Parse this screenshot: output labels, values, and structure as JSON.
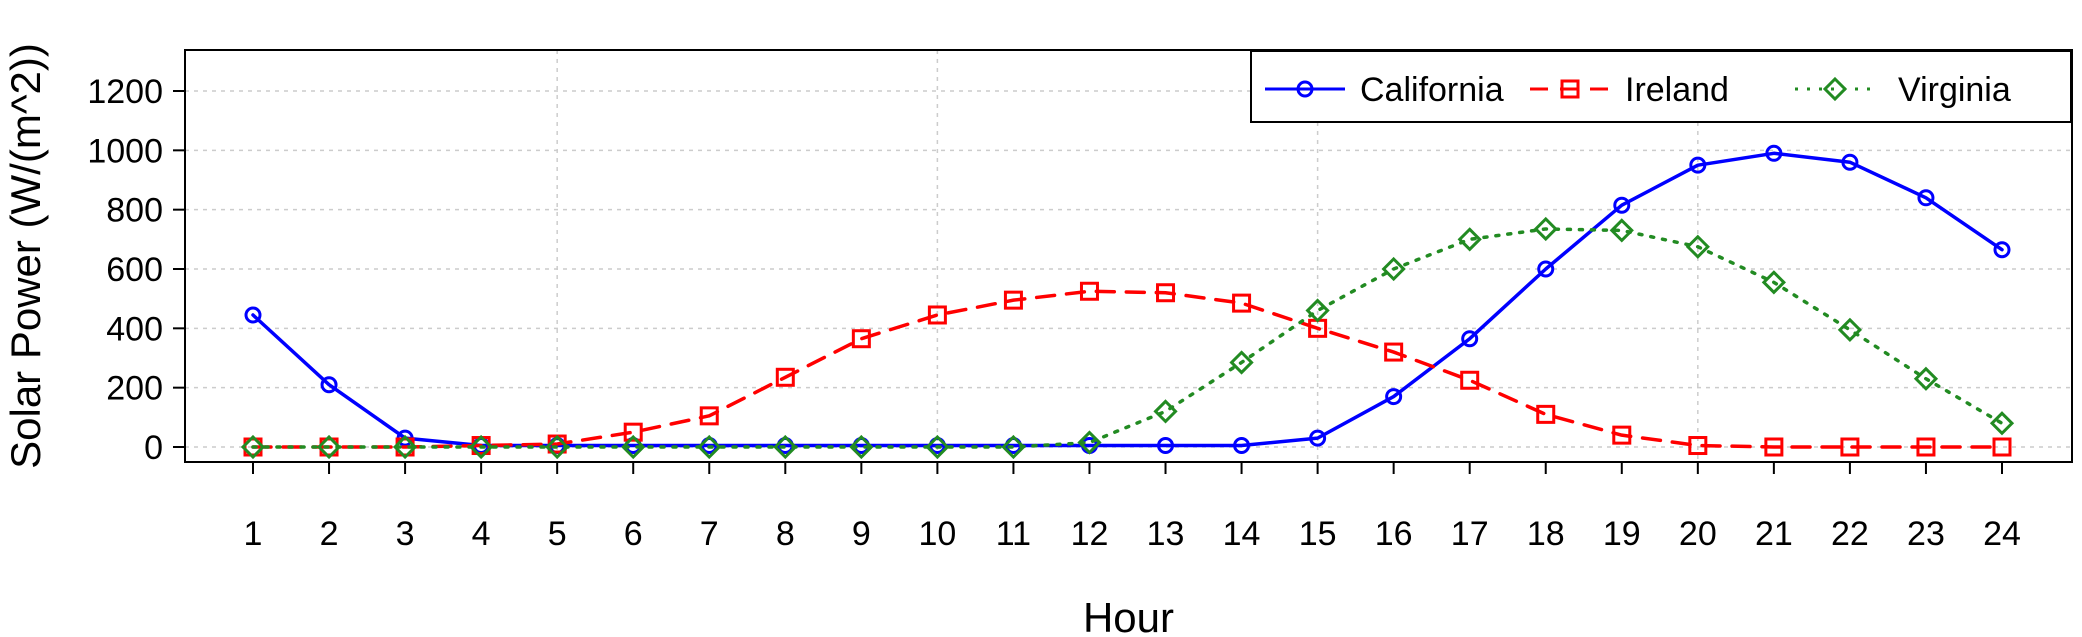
{
  "chart_data": {
    "type": "line",
    "xlabel": "Hour",
    "ylabel": "Solar Power (W/(m^2))",
    "x": [
      1,
      2,
      3,
      4,
      5,
      6,
      7,
      8,
      9,
      10,
      11,
      12,
      13,
      14,
      15,
      16,
      17,
      18,
      19,
      20,
      21,
      22,
      23,
      24
    ],
    "xlim": [
      1,
      24
    ],
    "ylim": [
      0,
      1300
    ],
    "yticks": [
      0,
      200,
      400,
      600,
      800,
      1000,
      1200
    ],
    "grid": true,
    "legend_position": "top-right",
    "series": [
      {
        "name": "California",
        "color": "#0000ff",
        "line_style": "solid",
        "marker": "circle",
        "values": [
          445,
          210,
          30,
          5,
          5,
          5,
          5,
          5,
          5,
          5,
          5,
          5,
          5,
          5,
          30,
          170,
          365,
          600,
          815,
          950,
          990,
          960,
          840,
          665
        ]
      },
      {
        "name": "Ireland",
        "color": "#ff0000",
        "line_style": "dashed",
        "marker": "square",
        "values": [
          0,
          0,
          0,
          5,
          10,
          50,
          105,
          235,
          365,
          445,
          495,
          525,
          520,
          485,
          400,
          320,
          225,
          110,
          40,
          5,
          0,
          0,
          0,
          0
        ]
      },
      {
        "name": "Virginia",
        "color": "#228b22",
        "line_style": "dotted",
        "marker": "diamond",
        "values": [
          0,
          0,
          0,
          0,
          0,
          0,
          0,
          0,
          0,
          0,
          0,
          15,
          120,
          285,
          460,
          600,
          700,
          735,
          730,
          675,
          555,
          395,
          230,
          80
        ]
      }
    ]
  }
}
